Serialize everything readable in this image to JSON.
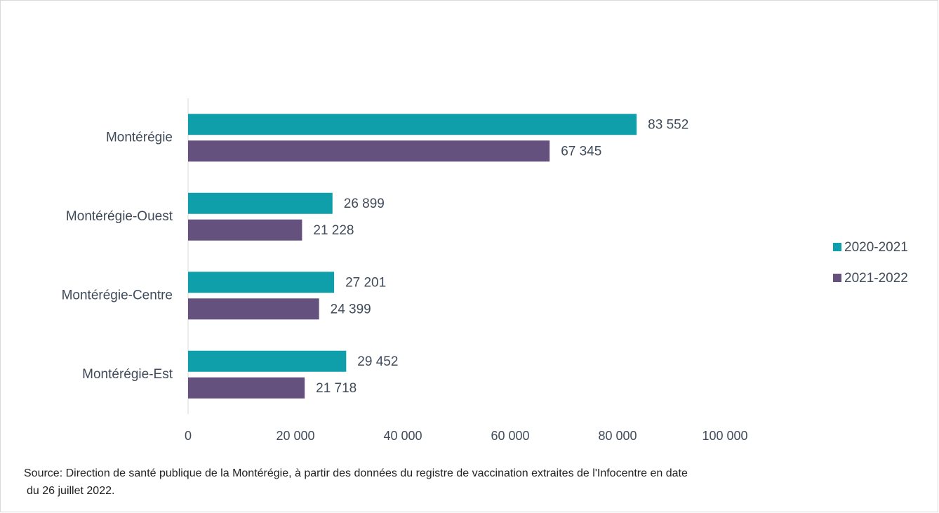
{
  "chart_data": {
    "type": "hbar",
    "categories": [
      "Montérégie",
      "Montérégie-Ouest",
      "Montérégie-Centre",
      "Montérégie-Est"
    ],
    "series": [
      {
        "name": "2020-2021",
        "color": "#0e9faa",
        "values": [
          83552,
          26899,
          27201,
          29452
        ],
        "value_labels": [
          "83 552",
          "26 899",
          "27 201",
          "29 452"
        ]
      },
      {
        "name": "2021-2022",
        "color": "#65517d",
        "values": [
          67345,
          21228,
          24399,
          21718
        ],
        "value_labels": [
          "67 345",
          "21 228",
          "24 399",
          "21 718"
        ]
      }
    ],
    "xlim": [
      0,
      100000
    ],
    "xticks": [
      0,
      {
        "value": 20000,
        "label": "20 000"
      },
      {
        "value": 40000,
        "label": "40 000"
      },
      {
        "value": 60000,
        "label": "60 000"
      },
      {
        "value": 80000,
        "label": "80 000"
      },
      {
        "value": 100000,
        "label": "100 000"
      }
    ],
    "grid": false,
    "legend": "right",
    "source": [
      "Source: Direction de santé publique de la Montérégie, à partir des données du registre de vaccination extraites de l'Infocentre en date",
      "du 26 juillet 2022."
    ]
  }
}
